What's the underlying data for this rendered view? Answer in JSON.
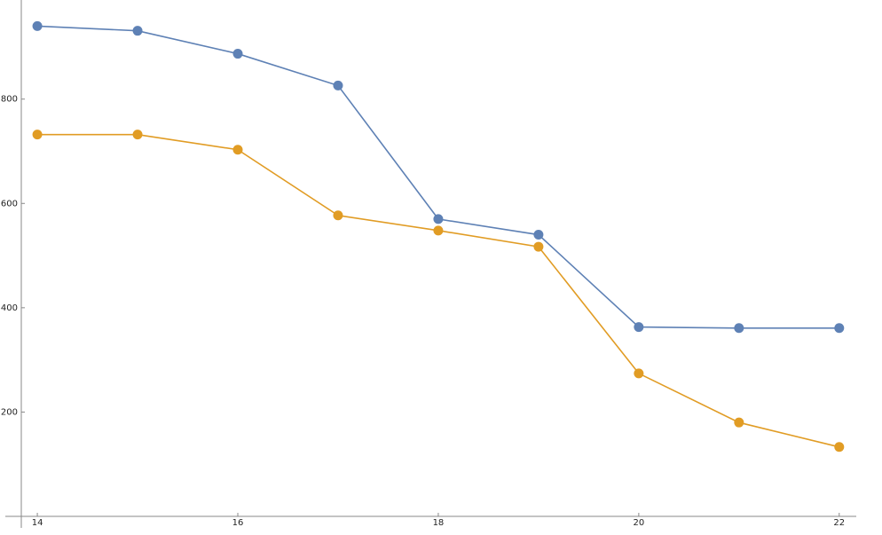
{
  "chart_data": {
    "type": "line",
    "x": [
      14,
      15,
      16,
      17,
      18,
      19,
      20,
      21,
      22
    ],
    "series": [
      {
        "color": "#5e81b5",
        "values": [
          940,
          931,
          887,
          826,
          570,
          540,
          363,
          361,
          361
        ]
      },
      {
        "color": "#e19c24",
        "values": [
          732,
          732,
          703,
          577,
          548,
          517,
          274,
          180,
          133
        ]
      }
    ],
    "xlim": [
      13.84,
      22.17
    ],
    "ylim": [
      0,
      990
    ],
    "xticks": [
      14,
      16,
      18,
      20,
      22
    ],
    "yticks": [
      200,
      400,
      600,
      800
    ]
  }
}
